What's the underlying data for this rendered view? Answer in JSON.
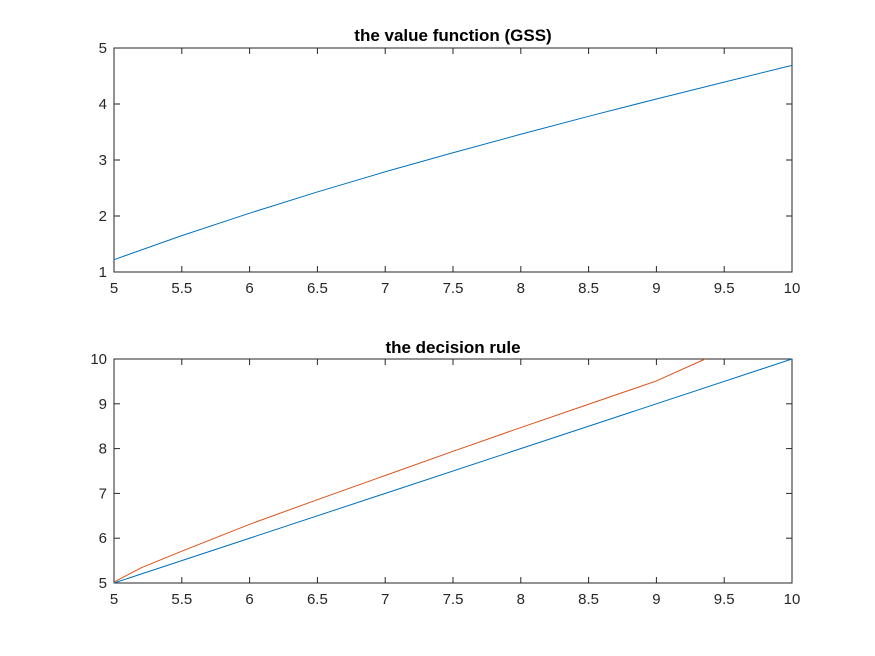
{
  "chart_data": [
    {
      "type": "line",
      "title": "the value function (GSS)",
      "xlabel": "",
      "ylabel": "",
      "xlim": [
        5,
        10
      ],
      "ylim": [
        1,
        5
      ],
      "xticks": [
        "5",
        "5.5",
        "6",
        "6.5",
        "7",
        "7.5",
        "8",
        "8.5",
        "9",
        "9.5",
        "10"
      ],
      "yticks": [
        "1",
        "2",
        "3",
        "4",
        "5"
      ],
      "grid": false,
      "series": [
        {
          "color": "#0072BD",
          "x": [
            5,
            5.5,
            6,
            6.5,
            7,
            7.5,
            8,
            8.5,
            9,
            9.5,
            10
          ],
          "y": [
            1.22,
            1.65,
            2.05,
            2.43,
            2.79,
            3.13,
            3.46,
            3.78,
            4.09,
            4.39,
            4.69
          ]
        }
      ]
    },
    {
      "type": "line",
      "title": "the decision rule",
      "xlabel": "",
      "ylabel": "",
      "xlim": [
        5,
        10
      ],
      "ylim": [
        5,
        10
      ],
      "xticks": [
        "5",
        "5.5",
        "6",
        "6.5",
        "7",
        "7.5",
        "8",
        "8.5",
        "9",
        "9.5",
        "10"
      ],
      "yticks": [
        "5",
        "6",
        "7",
        "8",
        "9",
        "10"
      ],
      "grid": false,
      "series": [
        {
          "color": "#0072BD",
          "x": [
            5,
            10
          ],
          "y": [
            5,
            10
          ]
        },
        {
          "color": "#D95319",
          "x": [
            5,
            5.2,
            5.5,
            6,
            6.5,
            7,
            7.5,
            8,
            8.5,
            9,
            9.36
          ],
          "y": [
            5.02,
            5.34,
            5.71,
            6.31,
            6.86,
            7.4,
            7.94,
            8.47,
            8.99,
            9.51,
            10
          ]
        }
      ]
    }
  ]
}
